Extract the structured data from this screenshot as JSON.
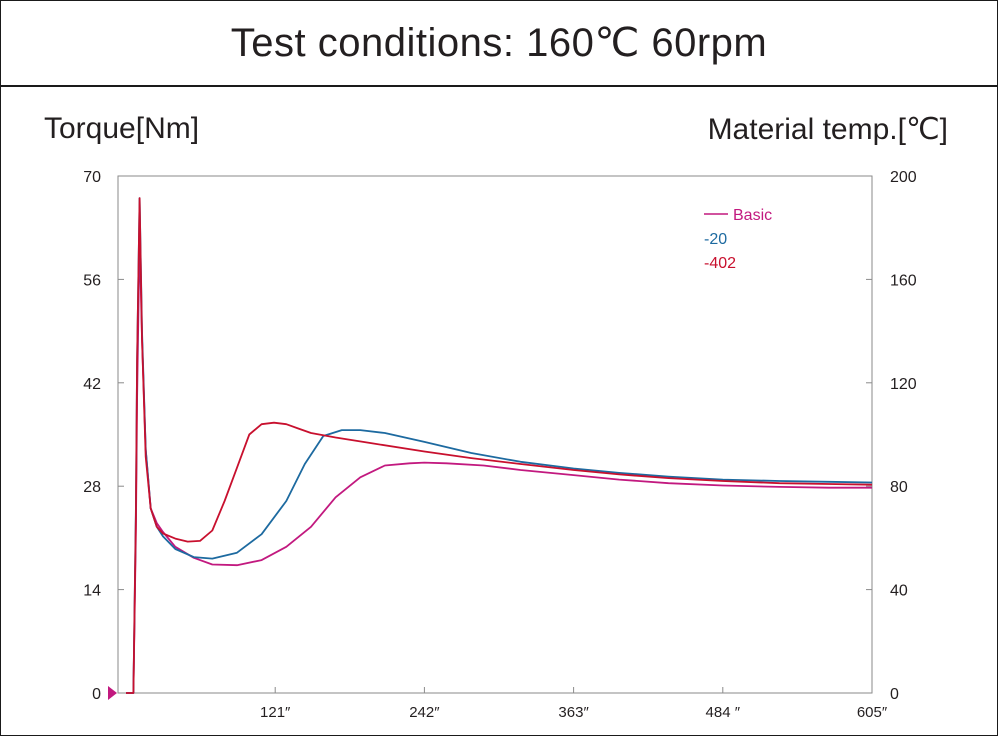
{
  "header": {
    "title": "Test conditions: 160℃ 60rpm"
  },
  "chart_data": {
    "type": "line",
    "title": "Test conditions: 160℃ 60rpm",
    "ylabel": "Torque[Nm]",
    "y2label": "Material temp.[℃]",
    "xlabel": "",
    "x_ticks": [
      "121″",
      "242″",
      "363″",
      "484 ″",
      "605″"
    ],
    "x_tick_values": [
      121,
      242,
      363,
      484,
      605
    ],
    "xlim": [
      0,
      605
    ],
    "ylim": [
      0,
      70
    ],
    "y_ticks": [
      "0",
      "14",
      "28",
      "42",
      "56",
      "70"
    ],
    "y_tick_values": [
      0,
      14,
      28,
      42,
      56,
      70
    ],
    "y2lim": [
      0,
      200
    ],
    "y2_ticks": [
      "0",
      "40",
      "80",
      "120",
      "160",
      "200"
    ],
    "y2_tick_values": [
      0,
      40,
      80,
      120,
      160,
      200
    ],
    "grid": false,
    "legend_position": "top-right",
    "series": [
      {
        "name": "Basic",
        "color": "#c2197f",
        "x": [
          0,
          4,
          6,
          8,
          9,
          11,
          13,
          16,
          20,
          25,
          30,
          40,
          55,
          70,
          90,
          110,
          130,
          150,
          170,
          190,
          210,
          230,
          242,
          260,
          290,
          320,
          363,
          400,
          440,
          484,
          530,
          570,
          605
        ],
        "y": [
          0,
          0,
          0,
          22,
          40,
          62,
          48,
          33,
          25,
          23,
          21.8,
          19.8,
          18.3,
          17.4,
          17.3,
          18,
          19.8,
          22.5,
          26.5,
          29.2,
          30.8,
          31.1,
          31.2,
          31.1,
          30.8,
          30.2,
          29.5,
          28.9,
          28.4,
          28.1,
          27.9,
          27.8,
          27.8
        ]
      },
      {
        "name": "-20",
        "color": "#1d6aa0",
        "x": [
          0,
          4,
          6,
          8,
          9,
          11,
          13,
          16,
          20,
          25,
          30,
          40,
          55,
          70,
          90,
          110,
          130,
          145,
          160,
          175,
          190,
          210,
          242,
          280,
          320,
          363,
          400,
          440,
          484,
          530,
          570,
          605
        ],
        "y": [
          0,
          0,
          0,
          25,
          45,
          67,
          49,
          33,
          25,
          22.5,
          21.2,
          19.5,
          18.4,
          18.2,
          19,
          21.5,
          26,
          31,
          34.8,
          35.6,
          35.6,
          35.2,
          34,
          32.5,
          31.3,
          30.4,
          29.8,
          29.3,
          28.9,
          28.7,
          28.6,
          28.5
        ]
      },
      {
        "name": "-402",
        "color": "#c8102e",
        "x": [
          0,
          4,
          6,
          8,
          9,
          11,
          13,
          16,
          20,
          25,
          30,
          40,
          50,
          60,
          70,
          80,
          90,
          100,
          110,
          120,
          130,
          140,
          150,
          170,
          200,
          242,
          280,
          320,
          363,
          400,
          440,
          484,
          530,
          570,
          605
        ],
        "y": [
          0,
          0,
          0,
          24,
          45,
          67,
          48,
          32,
          25,
          22.5,
          21.6,
          20.9,
          20.5,
          20.6,
          22,
          26,
          30.5,
          35,
          36.4,
          36.6,
          36.4,
          35.8,
          35.2,
          34.6,
          33.8,
          32.7,
          31.8,
          31,
          30.2,
          29.6,
          29.1,
          28.7,
          28.4,
          28.3,
          28.2
        ]
      }
    ]
  }
}
